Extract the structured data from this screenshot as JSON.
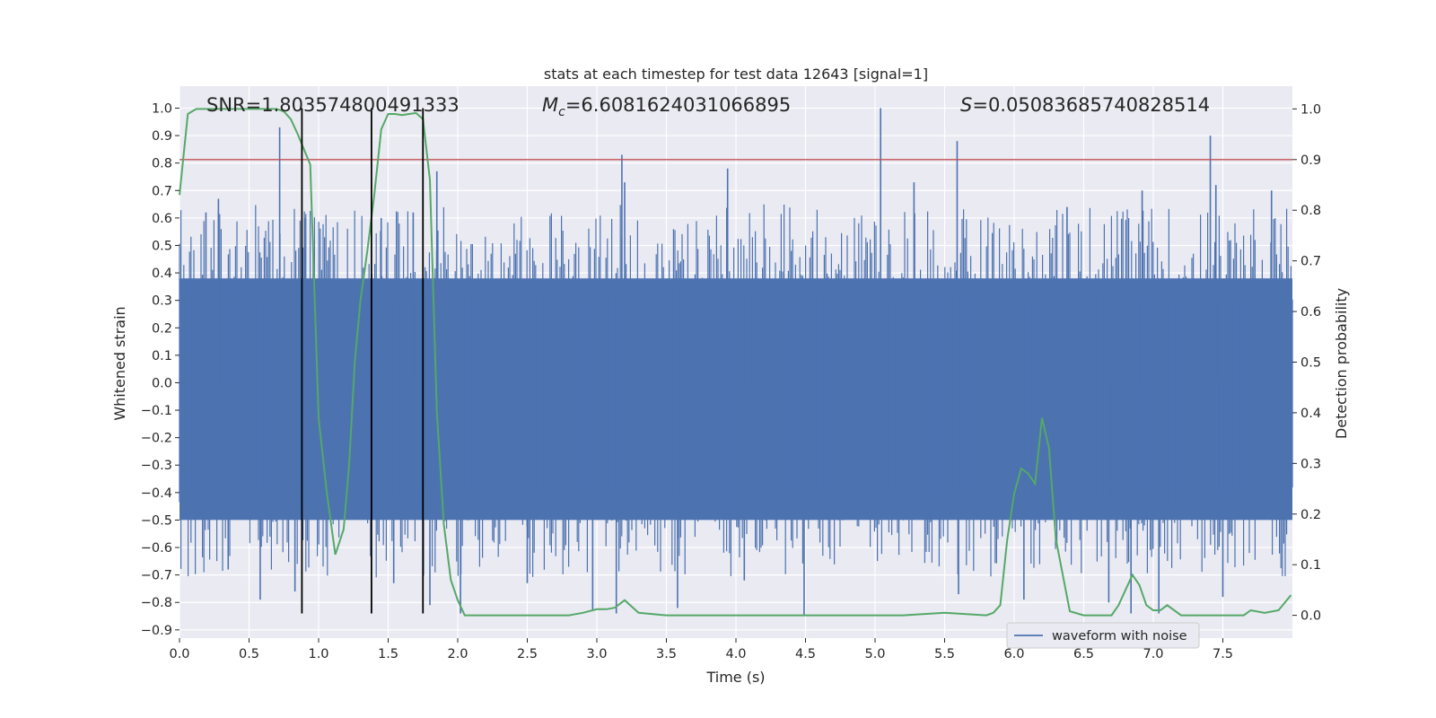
{
  "chart_data": {
    "type": "line",
    "title": "stats at each timestep for test data 12643 [signal=1]",
    "xlabel": "Time (s)",
    "ylabel_left": "Whitened strain",
    "ylabel_right": "Detection probability",
    "xlim": [
      0.0,
      8.0
    ],
    "ylim_left": [
      -0.93,
      1.08
    ],
    "ylim_right": [
      -0.045,
      1.045
    ],
    "x_ticks": [
      "0.0",
      "0.5",
      "1.0",
      "1.5",
      "2.0",
      "2.5",
      "3.0",
      "3.5",
      "4.0",
      "4.5",
      "5.0",
      "5.5",
      "6.0",
      "6.5",
      "7.0",
      "7.5"
    ],
    "y_ticks_left": [
      "1.0",
      "0.9",
      "0.8",
      "0.7",
      "0.6",
      "0.5",
      "0.4",
      "0.3",
      "0.2",
      "0.1",
      "0.0",
      "-0.1",
      "-0.2",
      "-0.3",
      "-0.4",
      "-0.5",
      "-0.6",
      "-0.7",
      "-0.8",
      "-0.9"
    ],
    "y_ticks_right": [
      "1.0",
      "0.9",
      "0.8",
      "0.7",
      "0.6",
      "0.5",
      "0.4",
      "0.3",
      "0.2",
      "0.1",
      "0.0"
    ],
    "annotations": {
      "snr": "SNR=1.803574800491333",
      "mc_symbol": "M",
      "mc_sub": "c",
      "mc_value": "=6.6081624031066895",
      "s_symbol": "S",
      "s_value": "=0.05083685740828514"
    },
    "legend": {
      "label": "waveform with noise",
      "placement": "lower-right"
    },
    "threshold": {
      "axis": "right",
      "value": 0.9,
      "color": "#c44e52"
    },
    "vertical_lines": {
      "x": [
        0.88,
        1.38,
        1.75
      ],
      "y_top": 1.0,
      "y_bottom": -0.84,
      "color": "#000000"
    },
    "waveform": {
      "name": "waveform with noise",
      "color": "#4c72b0",
      "core_band": [
        -0.5,
        0.38
      ],
      "peaks": [
        {
          "x": 0.72,
          "y": 0.93
        },
        {
          "x": 3.18,
          "y": 0.83
        },
        {
          "x": 5.04,
          "y": 1.0
        },
        {
          "x": 5.59,
          "y": 0.88
        },
        {
          "x": 7.41,
          "y": 0.9
        },
        {
          "x": 0.19,
          "y": 0.62
        },
        {
          "x": 0.28,
          "y": 0.67
        },
        {
          "x": 0.9,
          "y": 0.6
        },
        {
          "x": 1.45,
          "y": 0.6
        },
        {
          "x": 1.68,
          "y": 0.62
        },
        {
          "x": 1.85,
          "y": 0.77
        },
        {
          "x": 3.2,
          "y": 0.73
        },
        {
          "x": 3.94,
          "y": 0.78
        },
        {
          "x": 5.28,
          "y": 0.73
        },
        {
          "x": 6.38,
          "y": 0.64
        },
        {
          "x": 6.92,
          "y": 0.7
        },
        {
          "x": 7.45,
          "y": 0.72
        },
        {
          "x": 7.85,
          "y": 0.7
        },
        {
          "x": 0.58,
          "y": -0.79
        },
        {
          "x": 1.54,
          "y": -0.73
        },
        {
          "x": 2.02,
          "y": -0.84
        },
        {
          "x": 2.97,
          "y": -0.83
        },
        {
          "x": 3.14,
          "y": -0.84
        },
        {
          "x": 3.58,
          "y": -0.82
        },
        {
          "x": 4.49,
          "y": -0.85
        },
        {
          "x": 6.07,
          "y": -0.79
        },
        {
          "x": 6.68,
          "y": -0.8
        },
        {
          "x": 6.84,
          "y": -0.84
        },
        {
          "x": 7.04,
          "y": -0.84
        },
        {
          "x": 0.35,
          "y": -0.68
        },
        {
          "x": 0.83,
          "y": -0.76
        },
        {
          "x": 1.8,
          "y": -0.81
        },
        {
          "x": 2.5,
          "y": -0.73
        },
        {
          "x": 4.06,
          "y": -0.72
        },
        {
          "x": 5.6,
          "y": -0.77
        },
        {
          "x": 7.5,
          "y": -0.78
        }
      ]
    },
    "probability": {
      "name": "detection probability",
      "color": "#55a868",
      "x": [
        0.0,
        0.06,
        0.12,
        0.2,
        0.3,
        0.4,
        0.5,
        0.6,
        0.7,
        0.75,
        0.8,
        0.85,
        0.88,
        0.94,
        1.0,
        1.06,
        1.12,
        1.18,
        1.22,
        1.26,
        1.3,
        1.35,
        1.4,
        1.45,
        1.5,
        1.55,
        1.6,
        1.65,
        1.7,
        1.75,
        1.8,
        1.85,
        1.9,
        1.95,
        2.0,
        2.05,
        2.2,
        2.5,
        2.8,
        2.9,
        3.0,
        3.07,
        3.13,
        3.2,
        3.3,
        3.5,
        4.0,
        4.5,
        4.8,
        5.0,
        5.2,
        5.5,
        5.8,
        5.85,
        5.9,
        5.95,
        6.0,
        6.05,
        6.1,
        6.15,
        6.2,
        6.25,
        6.3,
        6.4,
        6.5,
        6.6,
        6.7,
        6.75,
        6.8,
        6.85,
        6.9,
        6.95,
        7.0,
        7.05,
        7.1,
        7.2,
        7.4,
        7.55,
        7.65,
        7.7,
        7.8,
        7.9,
        7.99
      ],
      "y": [
        0.83,
        0.99,
        1.0,
        1.0,
        1.0,
        1.0,
        1.0,
        1.0,
        1.0,
        0.995,
        0.98,
        0.95,
        0.93,
        0.89,
        0.39,
        0.24,
        0.12,
        0.17,
        0.3,
        0.5,
        0.62,
        0.72,
        0.83,
        0.96,
        0.99,
        0.99,
        0.988,
        0.99,
        0.992,
        0.98,
        0.86,
        0.4,
        0.18,
        0.07,
        0.03,
        0.0,
        0.0,
        0.0,
        0.0,
        0.005,
        0.012,
        0.012,
        0.015,
        0.03,
        0.005,
        0.0,
        0.0,
        0.0,
        0.0,
        0.0,
        0.0,
        0.005,
        0.0,
        0.005,
        0.02,
        0.15,
        0.24,
        0.29,
        0.28,
        0.26,
        0.39,
        0.33,
        0.15,
        0.008,
        0.0,
        0.0,
        0.0,
        0.02,
        0.05,
        0.08,
        0.06,
        0.02,
        0.01,
        0.01,
        0.02,
        0.0,
        0.0,
        0.0,
        0.0,
        0.01,
        0.005,
        0.01,
        0.04
      ]
    }
  }
}
